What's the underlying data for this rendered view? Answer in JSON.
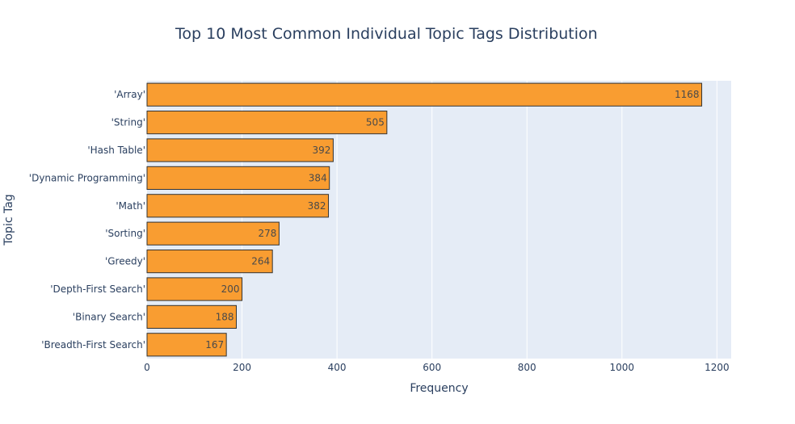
{
  "chart_data": {
    "type": "bar",
    "orientation": "horizontal",
    "title": "Top 10 Most Common Individual Topic Tags Distribution",
    "xlabel": "Frequency",
    "ylabel": "Topic Tag",
    "xlim": [
      0,
      1230
    ],
    "x_ticks": [
      0,
      200,
      400,
      600,
      800,
      1000,
      1200
    ],
    "categories": [
      "'Array'",
      "'String'",
      "'Hash Table'",
      "'Dynamic Programming'",
      "'Math'",
      "'Sorting'",
      "'Greedy'",
      "'Depth-First Search'",
      "'Binary Search'",
      "'Breadth-First Search'"
    ],
    "values": [
      1168,
      505,
      392,
      384,
      382,
      278,
      264,
      200,
      188,
      167
    ],
    "bar_color": "#f99d31",
    "bar_outline": "#333333",
    "plot_background": "#e5ecf6",
    "grid": true,
    "data_labels": true
  }
}
